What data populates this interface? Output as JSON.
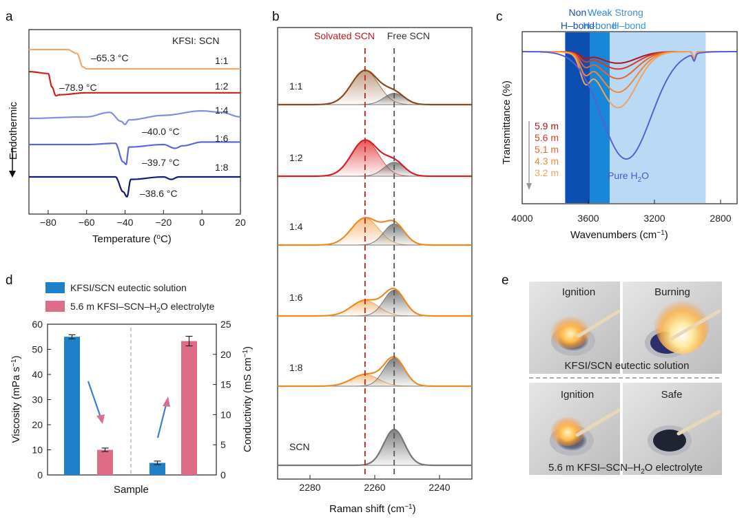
{
  "chart_data": [
    {
      "panel": "a",
      "type": "line",
      "title": "",
      "xlabel": "Temperature (oC)",
      "ylabel": "Endothermic",
      "xlim": [
        -90,
        20
      ],
      "xticks": [
        "-80",
        "-60",
        "-40",
        "-20",
        "0",
        "20"
      ],
      "legend_title": "KFSI: SCN",
      "series": [
        {
          "name": "1:1",
          "color": "#f0a868",
          "peak_label": "–65.3 °C",
          "points": [
            [
              -90,
              0
            ],
            [
              -70,
              0
            ],
            [
              -65,
              -0.2
            ],
            [
              -62,
              -0.9
            ],
            [
              -60,
              -1
            ],
            [
              -40,
              -1
            ],
            [
              0,
              -1
            ],
            [
              20,
              -1
            ]
          ]
        },
        {
          "name": "1:2",
          "color": "#cc1f1f",
          "peak_label": "–78.9 °C",
          "points": [
            [
              -90,
              0
            ],
            [
              -80,
              -0.1
            ],
            [
              -78,
              -0.8
            ],
            [
              -76,
              -1.25
            ],
            [
              -74,
              -1.2
            ],
            [
              -60,
              -1.1
            ],
            [
              0,
              -1.1
            ],
            [
              20,
              -1.1
            ]
          ]
        },
        {
          "name": "1:4",
          "color": "#7f8ce8",
          "peak_label": "–40.0 °C",
          "points": [
            [
              -90,
              0
            ],
            [
              -60,
              0.1
            ],
            [
              -48,
              0.4
            ],
            [
              -42,
              -0.2
            ],
            [
              -40,
              -0.4
            ],
            [
              -38,
              -0.1
            ],
            [
              -20,
              0.2
            ],
            [
              0,
              0.5
            ],
            [
              10,
              0.4
            ],
            [
              20,
              0.1
            ]
          ]
        },
        {
          "name": "1:6",
          "color": "#5b68da",
          "peak_label": "–39.7 °C",
          "points": [
            [
              -90,
              0
            ],
            [
              -60,
              0
            ],
            [
              -45,
              0.1
            ],
            [
              -41,
              -1.4
            ],
            [
              -39.5,
              -1.6
            ],
            [
              -38,
              -0.2
            ],
            [
              -20,
              0
            ],
            [
              -14,
              -0.3
            ],
            [
              -10,
              -0.1
            ],
            [
              0,
              0.2
            ],
            [
              20,
              0.2
            ]
          ]
        },
        {
          "name": "1:8",
          "color": "#101a7a",
          "peak_label": "–38.6 °C",
          "points": [
            [
              -90,
              0
            ],
            [
              -60,
              0
            ],
            [
              -45,
              0
            ],
            [
              -41,
              -1.2
            ],
            [
              -39,
              -1.6
            ],
            [
              -37,
              -0.2
            ],
            [
              -20,
              0
            ],
            [
              -16,
              -0.2
            ],
            [
              -12,
              0
            ],
            [
              20,
              0
            ]
          ]
        }
      ]
    },
    {
      "panel": "b",
      "type": "line",
      "xlabel": "Raman shift (cm−1)",
      "xlim": [
        2290,
        2230
      ],
      "xticks": [
        "2280",
        "2260",
        "2240"
      ],
      "reference_lines": [
        {
          "label": "Solvated SCN",
          "x": 2263,
          "color": "#cc1f1f"
        },
        {
          "label": "Free SCN",
          "x": 2254,
          "color": "#555555"
        }
      ],
      "series": [
        {
          "name": "1:1",
          "color": "#8a4a1a",
          "solvated_peak": [
            2263,
            0.9
          ],
          "free_peak": [
            2254,
            0.3
          ]
        },
        {
          "name": "1:2",
          "color": "#d42020",
          "solvated_peak": [
            2263,
            0.9
          ],
          "free_peak": [
            2254,
            0.35
          ]
        },
        {
          "name": "1:4",
          "color": "#ee8a20",
          "solvated_peak": [
            2263,
            0.7
          ],
          "free_peak": [
            2254,
            0.55
          ]
        },
        {
          "name": "1:6",
          "color": "#ee8a20",
          "solvated_peak": [
            2263,
            0.45
          ],
          "free_peak": [
            2254,
            0.75
          ]
        },
        {
          "name": "1:8",
          "color": "#ee8a20",
          "solvated_peak": [
            2263,
            0.35
          ],
          "free_peak": [
            2254,
            0.85
          ]
        },
        {
          "name": "SCN",
          "color": "#777777",
          "solvated_peak": [
            2263,
            0
          ],
          "free_peak": [
            2254,
            1.0
          ]
        }
      ]
    },
    {
      "panel": "c",
      "type": "line",
      "xlabel": "Wavenumbers (cm−1)",
      "ylabel": "Transmittance (%)",
      "xlim": [
        4000,
        2700
      ],
      "xticks": [
        "4000",
        "3600",
        "3200",
        "2800"
      ],
      "regions": [
        {
          "label_top": "Non",
          "label_bottom": "H–bond",
          "x": [
            3740,
            3590
          ],
          "color": "#0d4fb0"
        },
        {
          "label_top": "Weak",
          "label_bottom": "H–bond",
          "x": [
            3590,
            3470
          ],
          "color": "#1a86d8"
        },
        {
          "label_top": "Strong",
          "label_bottom": "H–bond",
          "x": [
            3470,
            2890
          ],
          "color": "#b9d9f5"
        }
      ],
      "series": [
        {
          "name": "5.9 m",
          "color": "#b3141b",
          "depth": 0.12
        },
        {
          "name": "5.6 m",
          "color": "#d63a24",
          "depth": 0.18
        },
        {
          "name": "5.1 m",
          "color": "#e8642f",
          "depth": 0.28
        },
        {
          "name": "4.3 m",
          "color": "#f0883a",
          "depth": 0.42
        },
        {
          "name": "3.2 m",
          "color": "#f3a25c",
          "depth": 0.58
        },
        {
          "name": "Pure H2O",
          "color": "#5560d6",
          "depth": 1.0
        }
      ],
      "pure_label": "Pure H",
      "pure_sub": "2",
      "pure_tail": "O"
    },
    {
      "panel": "d",
      "type": "bar",
      "xlabel": "Sample",
      "ylabel": "Viscosity (mPa s−1)",
      "ylabel_right": "Conductivity (mS cm−1)",
      "ylim": [
        0,
        60
      ],
      "ylim_right": [
        0,
        25
      ],
      "yticks": [
        "0",
        "10",
        "20",
        "30",
        "40",
        "50",
        "60"
      ],
      "yticks_right": [
        "0",
        "5",
        "10",
        "15",
        "20",
        "25"
      ],
      "legend": [
        {
          "label": "KFSI/SCN eutectic solution",
          "color": "#1f7fc8"
        },
        {
          "label": "5.6 m KFSI–SCN–H",
          "sub": "2",
          "tail": "O electrolyte",
          "color": "#de6c86"
        }
      ],
      "series": [
        {
          "name": "Viscosity",
          "axis": "left",
          "values": [
            {
              "label": "KFSI/SCN eutectic solution",
              "value": 55,
              "err": 0.8,
              "color": "#1f7fc8"
            },
            {
              "label": "5.6 m electrolyte",
              "value": 10,
              "err": 0.7,
              "color": "#de6c86"
            }
          ]
        },
        {
          "name": "Conductivity",
          "axis": "right",
          "values": [
            {
              "label": "KFSI/SCN eutectic solution",
              "value": 2,
              "err": 0.3,
              "color": "#1f7fc8"
            },
            {
              "label": "5.6 m electrolyte",
              "value": 22.2,
              "err": 0.8,
              "color": "#de6c86"
            }
          ]
        }
      ]
    }
  ],
  "panels": {
    "a": {
      "letter": "a"
    },
    "b": {
      "letter": "b"
    },
    "c": {
      "letter": "c"
    },
    "d": {
      "letter": "d"
    },
    "e": {
      "letter": "e"
    }
  },
  "panel_e": {
    "photos": [
      {
        "label": "Ignition",
        "group": "KFSI/SCN eutectic solution"
      },
      {
        "label": "Burning",
        "group": "KFSI/SCN eutectic solution"
      },
      {
        "label": "Ignition",
        "group": "5.6 m KFSI–SCN–H2O electrolyte"
      },
      {
        "label": "Safe",
        "group": "5.6 m KFSI–SCN–H2O electrolyte"
      }
    ],
    "caption_top": "KFSI/SCN eutectic solution",
    "caption_bottom": "5.6 m KFSI–SCN–H",
    "caption_bottom_sub": "2",
    "caption_bottom_tail": "O electrolyte"
  }
}
